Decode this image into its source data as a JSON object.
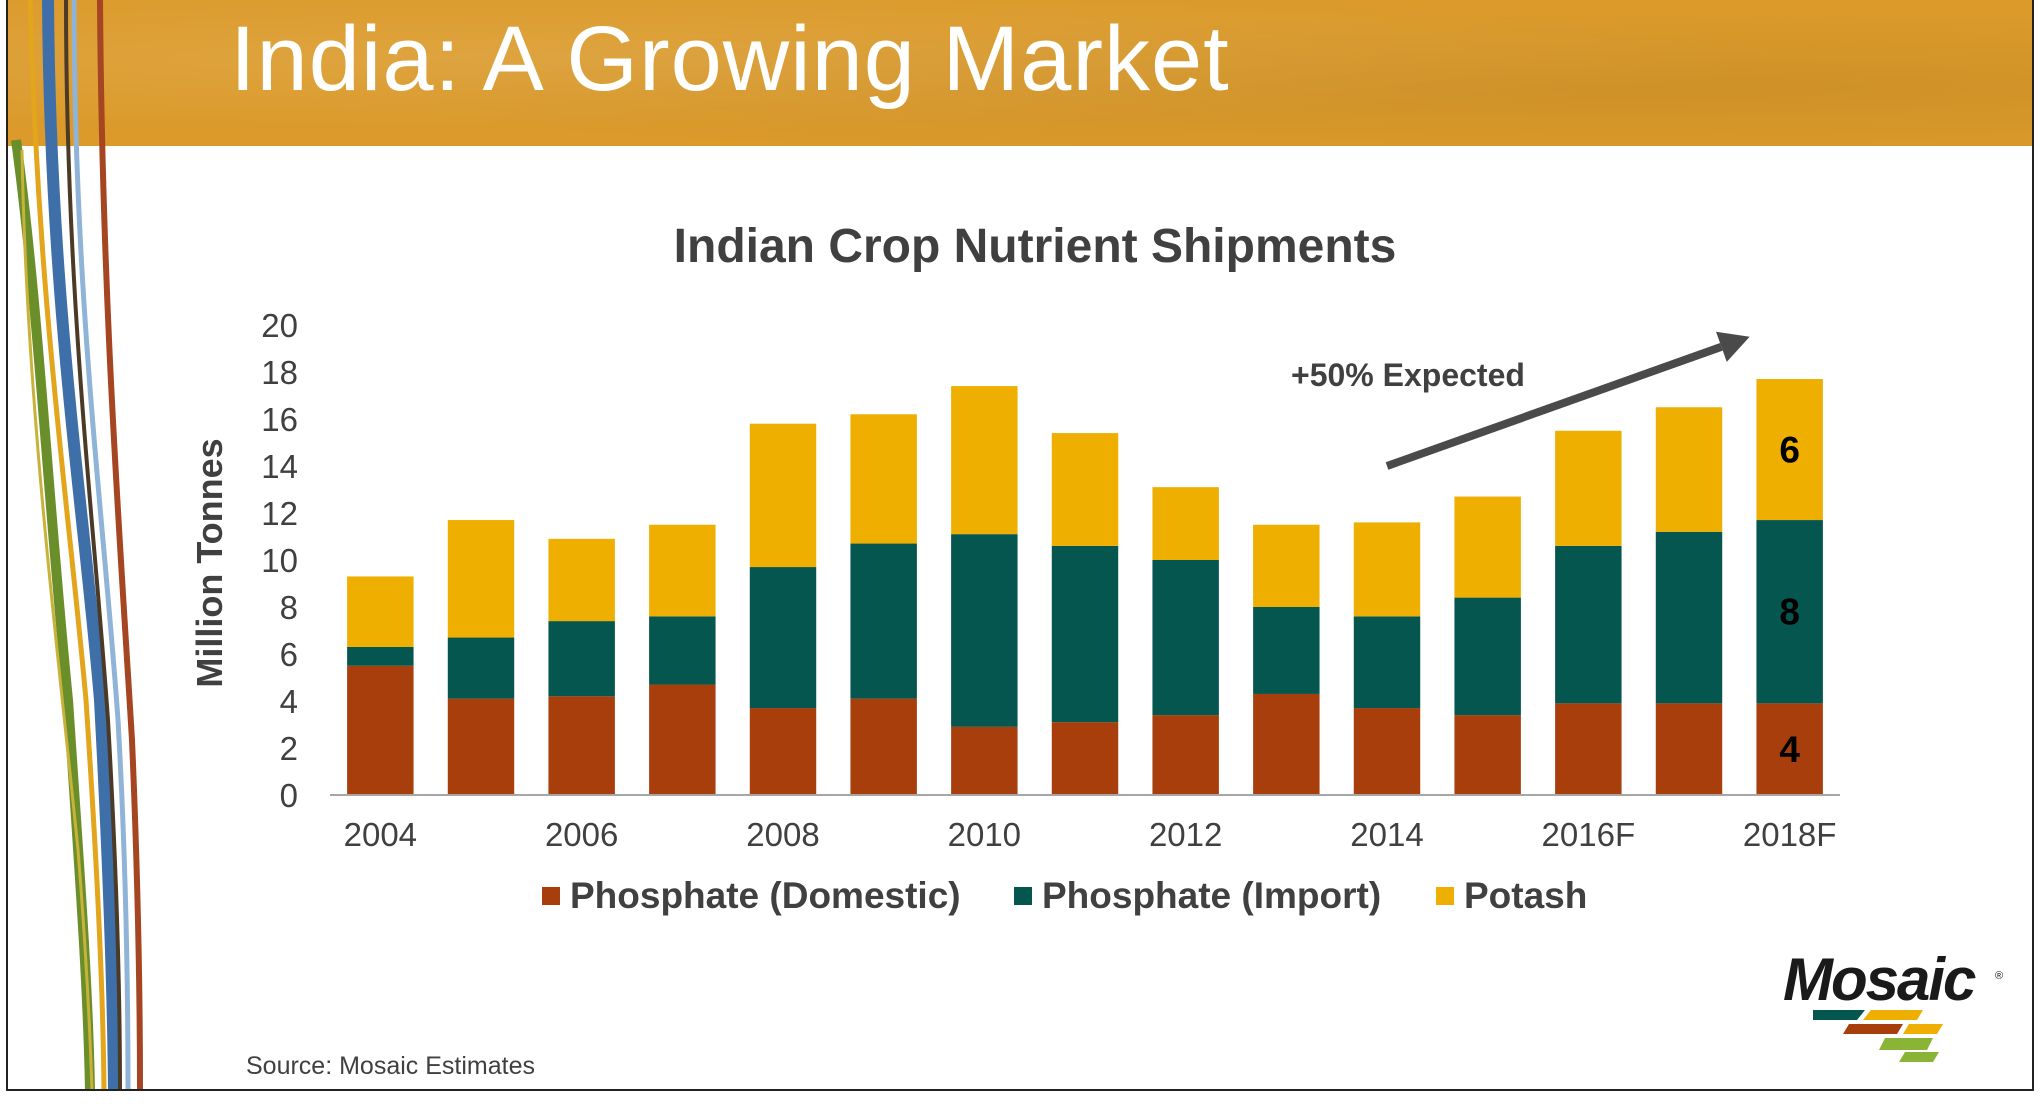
{
  "slide": {
    "title": "India: A Growing Market",
    "source": "Source: Mosaic Estimates",
    "logo_text": "Mosaic",
    "logo_reg": "®"
  },
  "colors": {
    "header": "#db9a2a",
    "phosphate_domestic": "#a83e0c",
    "phosphate_import": "#04564f",
    "potash": "#eeaf00",
    "axis": "#a6a6a6",
    "text": "#404040",
    "arrow": "#4a4a4a"
  },
  "chart_data": {
    "type": "bar",
    "stacked": true,
    "title": "Indian Crop Nutrient Shipments",
    "ylabel": "Million Tonnes",
    "xlabel": "",
    "ylim": [
      0,
      20
    ],
    "yticks": [
      "0",
      "2",
      "4",
      "6",
      "8",
      "10",
      "12",
      "14",
      "16",
      "18",
      "20"
    ],
    "categories": [
      "2004",
      "2005",
      "2006",
      "2007",
      "2008",
      "2009",
      "2010",
      "2011",
      "2012",
      "2013",
      "2014",
      "2015",
      "2016F",
      "2017F",
      "2018F"
    ],
    "xtick_labels": [
      "2004",
      "",
      "2006",
      "",
      "2008",
      "",
      "2010",
      "",
      "2012",
      "",
      "2014",
      "",
      "2016F",
      "",
      "2018F"
    ],
    "series": [
      {
        "name": "Phosphate (Domestic)",
        "values": [
          5.5,
          4.1,
          4.2,
          4.7,
          3.7,
          4.1,
          2.9,
          3.1,
          3.4,
          4.3,
          3.7,
          3.4,
          3.9,
          3.9,
          3.9
        ]
      },
      {
        "name": "Phosphate (Import)",
        "values": [
          0.8,
          2.6,
          3.2,
          2.9,
          6.0,
          6.6,
          8.2,
          7.5,
          6.6,
          3.7,
          3.9,
          5.0,
          6.7,
          7.3,
          7.8
        ]
      },
      {
        "name": "Potash",
        "values": [
          3.0,
          5.0,
          3.5,
          3.9,
          6.1,
          5.5,
          6.3,
          4.8,
          3.1,
          3.5,
          4.0,
          4.3,
          4.9,
          5.3,
          6.0
        ]
      }
    ],
    "data_labels": [
      {
        "category": "2018F",
        "series": "Potash",
        "text": "6"
      },
      {
        "category": "2018F",
        "series": "Phosphate (Import)",
        "text": "8"
      },
      {
        "category": "2018F",
        "series": "Phosphate (Domestic)",
        "text": "4"
      }
    ],
    "annotation": {
      "text": "+50% Expected",
      "arrow_from": [
        "2014",
        14
      ],
      "arrow_to": [
        "2018F",
        19.5
      ]
    },
    "legend": {
      "position": "bottom"
    },
    "grid": false
  }
}
